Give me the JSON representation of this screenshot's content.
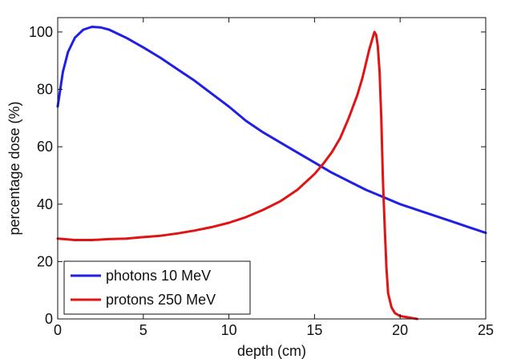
{
  "chart_data": {
    "type": "line",
    "title": "",
    "xlabel": "depth (cm)",
    "ylabel": "percentage dose (%)",
    "xlim": [
      0,
      25
    ],
    "ylim": [
      0,
      105
    ],
    "xticks": [
      0,
      5,
      10,
      15,
      20,
      25
    ],
    "yticks": [
      0,
      20,
      40,
      60,
      80,
      100
    ],
    "grid": false,
    "legend_position": "bottom-left",
    "series": [
      {
        "name": "photons 10 MeV",
        "color": "#1f1fe6",
        "x": [
          0,
          0.3,
          0.6,
          1,
          1.5,
          2,
          2.5,
          3,
          4,
          5,
          6,
          7,
          8,
          9,
          10,
          11,
          12,
          13,
          14,
          15,
          16,
          17,
          18,
          19,
          20,
          21,
          22,
          23,
          24,
          25
        ],
        "y": [
          74,
          86,
          93,
          98,
          100.8,
          101.8,
          101.6,
          100.8,
          98,
          94.6,
          91,
          87,
          83,
          78.5,
          74,
          69,
          65,
          61.5,
          58,
          54.5,
          51,
          48,
          45,
          42.5,
          40,
          38,
          36,
          34,
          32,
          30
        ]
      },
      {
        "name": "protons 250 MeV",
        "color": "#e01414",
        "x": [
          0,
          1,
          2,
          3,
          4,
          5,
          6,
          7,
          8,
          9,
          10,
          11,
          12,
          13,
          14,
          15,
          15.5,
          16,
          16.5,
          17,
          17.5,
          17.8,
          18,
          18.2,
          18.4,
          18.5,
          18.6,
          18.7,
          18.8,
          18.9,
          19,
          19.1,
          19.2,
          19.3,
          19.5,
          19.7,
          20,
          20.5,
          21
        ],
        "y": [
          28,
          27.5,
          27.5,
          27.8,
          28,
          28.5,
          29,
          29.8,
          30.8,
          32,
          33.5,
          35.5,
          38,
          41,
          45,
          50.5,
          54,
          58,
          63,
          70,
          78,
          84,
          89,
          94,
          98,
          100,
          99,
          95,
          86,
          70,
          48,
          32,
          18,
          9,
          4,
          2,
          1,
          0.5,
          0
        ]
      }
    ]
  }
}
